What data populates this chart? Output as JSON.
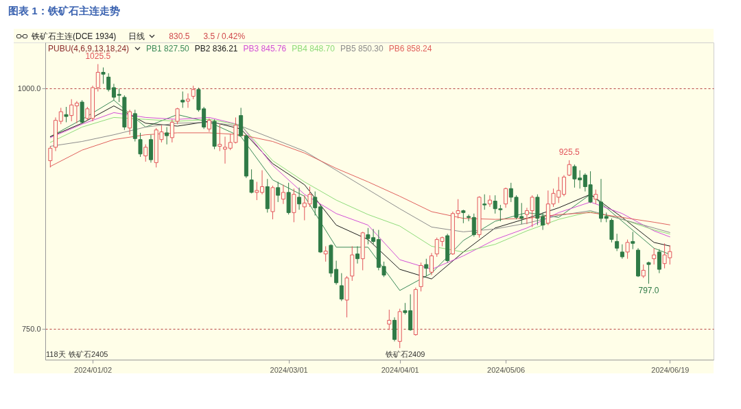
{
  "chart_data": {
    "type": "candlestick",
    "title": "图表 1：铁矿石主连走势",
    "subtitle": "铁矿石主连(DCE 1934)",
    "legend_title": "PUBU(4,6,9,13,18,24)",
    "legend": "top left",
    "grid": "y",
    "categories": [
      null,
      null,
      null,
      null,
      null,
      null,
      null,
      null,
      "2024/01/02",
      null,
      null,
      null,
      null,
      null,
      null,
      null,
      null,
      null,
      null,
      null,
      null,
      null,
      null,
      null,
      null,
      null,
      null,
      null,
      null,
      null,
      null,
      null,
      null,
      null,
      null,
      null,
      null,
      null,
      null,
      null,
      null,
      null,
      null,
      null,
      null,
      "2024/03/01",
      null,
      null,
      null,
      null,
      null,
      null,
      null,
      null,
      null,
      null,
      null,
      null,
      null,
      null,
      null,
      null,
      null,
      null,
      null,
      null,
      "2024/04/01",
      null,
      null,
      null,
      null,
      null,
      null,
      null,
      null,
      null,
      null,
      null,
      null,
      null,
      null,
      null,
      null,
      null,
      null,
      null,
      "2024/05/06",
      null,
      null,
      null,
      null,
      null,
      null,
      null,
      null,
      null,
      null,
      null,
      null,
      null,
      null,
      null,
      null,
      null,
      null,
      null,
      null,
      null,
      null,
      null,
      null,
      null,
      null,
      null,
      null,
      null,
      null,
      "2024/06/19"
    ],
    "ohlc": [
      [
        925,
        940,
        918,
        938
      ],
      [
        939,
        970,
        935,
        967
      ],
      [
        966,
        980,
        963,
        976
      ],
      [
        973,
        981,
        965,
        971
      ],
      [
        972,
        989,
        966,
        983
      ],
      [
        982,
        987,
        964,
        985
      ],
      [
        986,
        988,
        964,
        965
      ],
      [
        969,
        981,
        967,
        979
      ],
      [
        969,
        1003,
        966,
        1001
      ],
      [
        1001,
        1025.5,
        997,
        1017
      ],
      [
        1017,
        1022,
        1005,
        1015
      ],
      [
        1012,
        1016,
        997,
        999
      ],
      [
        1001,
        1005,
        988,
        991
      ],
      [
        994,
        1000,
        986,
        993
      ],
      [
        991,
        993,
        957,
        960
      ],
      [
        959,
        978,
        952,
        976
      ],
      [
        974,
        978,
        945,
        948
      ],
      [
        947,
        954,
        929,
        932
      ],
      [
        930,
        942,
        924,
        939
      ],
      [
        947,
        952,
        923,
        926
      ],
      [
        923,
        959,
        918,
        957
      ],
      [
        947,
        962,
        944,
        955
      ],
      [
        954,
        960,
        942,
        951
      ],
      [
        949,
        968,
        944,
        965
      ],
      [
        966,
        980,
        963,
        979
      ],
      [
        988,
        997,
        980,
        986
      ],
      [
        987,
        995,
        980,
        989
      ],
      [
        992,
        1003,
        989,
        999
      ],
      [
        999,
        1001,
        976,
        978
      ],
      [
        979,
        981,
        958,
        960
      ],
      [
        958,
        969,
        955,
        967
      ],
      [
        966,
        968,
        937,
        940
      ],
      [
        940,
        963,
        935,
        942
      ],
      [
        937,
        950,
        922,
        939
      ],
      [
        938,
        953,
        936,
        944
      ],
      [
        944,
        970,
        943,
        962
      ],
      [
        972,
        980,
        950,
        951
      ],
      [
        951,
        952,
        907,
        909
      ],
      [
        905,
        916,
        891,
        892
      ],
      [
        892,
        903,
        884,
        894
      ],
      [
        892,
        915,
        890,
        898
      ],
      [
        898,
        906,
        871,
        875
      ],
      [
        872,
        899,
        864,
        897
      ],
      [
        897,
        903,
        882,
        889
      ],
      [
        885,
        900,
        880,
        892
      ],
      [
        892,
        902,
        869,
        871
      ],
      [
        871,
        896,
        861,
        890
      ],
      [
        887,
        897,
        874,
        880
      ],
      [
        877,
        889,
        863,
        881
      ],
      [
        880,
        898,
        877,
        890
      ],
      [
        887,
        893,
        868,
        876
      ],
      [
        877,
        879,
        829,
        830
      ],
      [
        828,
        836,
        820,
        831
      ],
      [
        837,
        838,
        804,
        808
      ],
      [
        812,
        821,
        796,
        798
      ],
      [
        795,
        808,
        779,
        781
      ],
      [
        780,
        805,
        762,
        803
      ],
      [
        805,
        836,
        800,
        827
      ],
      [
        828,
        836,
        818,
        823
      ],
      [
        823,
        851,
        811,
        850
      ],
      [
        848,
        855,
        838,
        844
      ],
      [
        845,
        854,
        838,
        841
      ],
      [
        843,
        853,
        811,
        814
      ],
      [
        815,
        820,
        804,
        806
      ],
      [
        755,
        770,
        749,
        759
      ],
      [
        759,
        762,
        737,
        739
      ],
      [
        737,
        771,
        730,
        768
      ],
      [
        769,
        777,
        765,
        767
      ],
      [
        769,
        786,
        748,
        749
      ],
      [
        744,
        793,
        743,
        791
      ],
      [
        794,
        819,
        789,
        816
      ],
      [
        817,
        823,
        805,
        813
      ],
      [
        809,
        829,
        806,
        826
      ],
      [
        828,
        845,
        825,
        843
      ],
      [
        841,
        846,
        836,
        845
      ],
      [
        847,
        849,
        819,
        821
      ],
      [
        828,
        872,
        827,
        870
      ],
      [
        870,
        885,
        865,
        873
      ],
      [
        873,
        874,
        860,
        871
      ],
      [
        867,
        869,
        862,
        866
      ],
      [
        866,
        870,
        846,
        848
      ],
      [
        848,
        888,
        845,
        887
      ],
      [
        880,
        890,
        874,
        879
      ],
      [
        880,
        889,
        877,
        884
      ],
      [
        883,
        889,
        870,
        875
      ],
      [
        875,
        879,
        862,
        874
      ],
      [
        880,
        897,
        876,
        896
      ],
      [
        896,
        902,
        882,
        887
      ],
      [
        887,
        889,
        864,
        866
      ],
      [
        867,
        881,
        859,
        865
      ],
      [
        869,
        876,
        859,
        873
      ],
      [
        873,
        889,
        856,
        887
      ],
      [
        887,
        890,
        858,
        865
      ],
      [
        867,
        871,
        853,
        858
      ],
      [
        860,
        894,
        858,
        880
      ],
      [
        880,
        896,
        877,
        891
      ],
      [
        887,
        908,
        881,
        894
      ],
      [
        890,
        910,
        888,
        908
      ],
      [
        910,
        925.5,
        909,
        921
      ],
      [
        919,
        921,
        897,
        906
      ],
      [
        907,
        915,
        896,
        905
      ],
      [
        910,
        912,
        893,
        898
      ],
      [
        900,
        914,
        881,
        882
      ],
      [
        885,
        895,
        880,
        890
      ],
      [
        882,
        906,
        861,
        865
      ],
      [
        867,
        871,
        861,
        865
      ],
      [
        863,
        865,
        840,
        843
      ],
      [
        841,
        849,
        831,
        834
      ],
      [
        830,
        838,
        823,
        825
      ],
      [
        830,
        843,
        823,
        840
      ],
      [
        841,
        851,
        833,
        839
      ],
      [
        832,
        834,
        804,
        805
      ],
      [
        805,
        817,
        803,
        811
      ],
      [
        819,
        820,
        797,
        817
      ],
      [
        823,
        834,
        817,
        827
      ],
      [
        830,
        833,
        808,
        812
      ],
      [
        818,
        839,
        813,
        827
      ],
      [
        824,
        837,
        817,
        830.5
      ]
    ],
    "series": [
      {
        "type": "line",
        "name": "PB1 827.50",
        "color": "#3b8a58",
        "values": [
          950,
          null,
          null,
          null,
          null,
          null,
          968,
          null,
          null,
          null,
          null,
          null,
          988,
          null,
          null,
          null,
          null,
          null,
          960,
          null,
          null,
          null,
          null,
          null,
          973,
          null,
          null,
          null,
          null,
          null,
          965,
          null,
          null,
          null,
          null,
          null,
          950,
          null,
          null,
          null,
          null,
          null,
          905,
          null,
          null,
          null,
          null,
          null,
          888,
          null,
          null,
          null,
          null,
          null,
          835,
          null,
          null,
          null,
          null,
          null,
          835,
          null,
          null,
          null,
          null,
          null,
          790,
          null,
          null,
          null,
          null,
          null,
          808,
          null,
          null,
          null,
          null,
          null,
          842,
          null,
          null,
          null,
          null,
          null,
          862,
          null,
          null,
          null,
          null,
          null,
          871,
          null,
          null,
          null,
          null,
          null,
          866,
          null,
          null,
          null,
          null,
          null,
          890,
          null,
          null,
          null,
          null,
          null,
          862,
          null,
          null,
          null,
          null,
          null,
          834,
          null,
          null,
          827.5
        ]
      },
      {
        "type": "line",
        "name": "PB2 836.21",
        "color": "#1a1a1a",
        "values": [
          950,
          null,
          null,
          null,
          null,
          null,
          964,
          null,
          null,
          null,
          null,
          null,
          982,
          null,
          null,
          null,
          null,
          null,
          964,
          null,
          null,
          null,
          null,
          null,
          961,
          null,
          null,
          null,
          null,
          null,
          966,
          null,
          null,
          null,
          null,
          null,
          958,
          null,
          null,
          null,
          null,
          null,
          922,
          null,
          null,
          null,
          null,
          null,
          900,
          null,
          null,
          null,
          null,
          null,
          858,
          null,
          null,
          null,
          null,
          null,
          843,
          null,
          null,
          null,
          null,
          null,
          812,
          null,
          null,
          null,
          null,
          null,
          802,
          null,
          null,
          null,
          null,
          null,
          830,
          null,
          null,
          null,
          null,
          null,
          855,
          null,
          null,
          null,
          null,
          null,
          865,
          null,
          null,
          null,
          null,
          null,
          876,
          null,
          null,
          null,
          null,
          null,
          890,
          null,
          null,
          null,
          null,
          null,
          866,
          null,
          null,
          null,
          null,
          null,
          840,
          null,
          null,
          836.21
        ]
      },
      {
        "type": "line",
        "name": "PB3 845.76",
        "color": "#d24fd6",
        "values": [
          949,
          null,
          null,
          null,
          null,
          null,
          963,
          null,
          null,
          null,
          null,
          null,
          975,
          null,
          null,
          null,
          null,
          null,
          970,
          null,
          null,
          null,
          null,
          null,
          968,
          null,
          null,
          null,
          null,
          null,
          970,
          null,
          null,
          null,
          null,
          null,
          962,
          null,
          null,
          null,
          null,
          null,
          920,
          null,
          null,
          null,
          null,
          null,
          890,
          null,
          null,
          null,
          null,
          null,
          870,
          null,
          null,
          null,
          null,
          null,
          858,
          null,
          null,
          null,
          null,
          null,
          822,
          null,
          null,
          null,
          null,
          null,
          812,
          null,
          null,
          null,
          null,
          null,
          826,
          null,
          null,
          null,
          null,
          null,
          843,
          null,
          null,
          null,
          null,
          null,
          855,
          null,
          null,
          null,
          null,
          null,
          871,
          null,
          null,
          null,
          null,
          null,
          882,
          null,
          null,
          null,
          null,
          null,
          870,
          null,
          null,
          null,
          null,
          null,
          852,
          null,
          null,
          845.76
        ]
      },
      {
        "type": "line",
        "name": "PB4 848.70",
        "color": "#8edb7a",
        "values": [
          944,
          null,
          null,
          null,
          null,
          null,
          960,
          null,
          null,
          null,
          null,
          null,
          970,
          null,
          null,
          null,
          null,
          null,
          968,
          null,
          null,
          null,
          null,
          null,
          966,
          null,
          null,
          null,
          null,
          null,
          968,
          null,
          null,
          null,
          null,
          null,
          962,
          null,
          null,
          null,
          null,
          null,
          925,
          null,
          null,
          null,
          null,
          null,
          903,
          null,
          null,
          null,
          null,
          null,
          884,
          null,
          null,
          null,
          null,
          null,
          869,
          null,
          null,
          null,
          null,
          null,
          857,
          null,
          null,
          null,
          null,
          null,
          836,
          null,
          null,
          null,
          null,
          null,
          830,
          null,
          null,
          null,
          null,
          null,
          838,
          null,
          null,
          null,
          null,
          null,
          852,
          null,
          null,
          null,
          null,
          null,
          864,
          null,
          null,
          null,
          null,
          null,
          872,
          null,
          null,
          null,
          null,
          null,
          864,
          null,
          null,
          null,
          null,
          null,
          853,
          null,
          null,
          848.7
        ]
      },
      {
        "type": "line",
        "name": "PB5 850.30",
        "color": "#8c8c8c",
        "values": [
          940,
          null,
          null,
          null,
          null,
          null,
          945,
          null,
          null,
          null,
          null,
          null,
          952,
          null,
          null,
          null,
          null,
          null,
          960,
          null,
          null,
          null,
          null,
          null,
          964,
          null,
          null,
          null,
          null,
          null,
          965,
          null,
          null,
          null,
          null,
          null,
          961,
          null,
          null,
          null,
          null,
          null,
          948,
          null,
          null,
          null,
          null,
          null,
          935,
          null,
          null,
          null,
          null,
          null,
          915,
          null,
          null,
          null,
          null,
          null,
          895,
          null,
          null,
          null,
          null,
          null,
          875,
          null,
          null,
          null,
          null,
          null,
          856,
          null,
          null,
          null,
          null,
          null,
          851,
          null,
          null,
          null,
          null,
          null,
          854,
          null,
          null,
          null,
          null,
          null,
          860,
          null,
          null,
          null,
          null,
          null,
          868,
          null,
          null,
          null,
          null,
          null,
          873,
          null,
          null,
          null,
          null,
          null,
          864,
          null,
          null,
          null,
          null,
          null,
          855,
          null,
          null,
          850.3
        ]
      },
      {
        "type": "line",
        "name": "PB6 858.24",
        "color": "#e0605c",
        "values": [
          919,
          null,
          null,
          null,
          null,
          null,
          936,
          null,
          null,
          null,
          null,
          null,
          947,
          null,
          null,
          null,
          null,
          null,
          952,
          null,
          null,
          null,
          null,
          null,
          954,
          null,
          null,
          null,
          null,
          null,
          954,
          null,
          null,
          null,
          null,
          null,
          952,
          null,
          null,
          null,
          null,
          null,
          945,
          null,
          null,
          null,
          null,
          null,
          933,
          null,
          null,
          null,
          null,
          null,
          917,
          null,
          null,
          null,
          null,
          null,
          903,
          null,
          null,
          null,
          null,
          null,
          888,
          null,
          null,
          null,
          null,
          null,
          872,
          null,
          null,
          null,
          null,
          null,
          865,
          null,
          null,
          null,
          null,
          null,
          864,
          null,
          null,
          null,
          null,
          null,
          865,
          null,
          null,
          null,
          null,
          null,
          869,
          null,
          null,
          null,
          null,
          null,
          871,
          null,
          null,
          null,
          null,
          null,
          866,
          null,
          null,
          null,
          null,
          null,
          861,
          null,
          null,
          858.24
        ]
      }
    ],
    "ylim": [
      718,
      1048
    ],
    "yticks": [
      {
        "value": 750,
        "label": "750.0"
      },
      {
        "value": 1000,
        "label": "1000.0"
      }
    ],
    "annotations": [
      "日线",
      "830.5",
      "3.5 / 0.42%",
      "118天",
      "铁矿石2405",
      "铁矿石2409",
      {
        "text": "1025.5",
        "y": 1025.5
      },
      {
        "text": "925.5",
        "y": 925.5
      },
      {
        "text": "797.0",
        "y": 797
      }
    ]
  }
}
